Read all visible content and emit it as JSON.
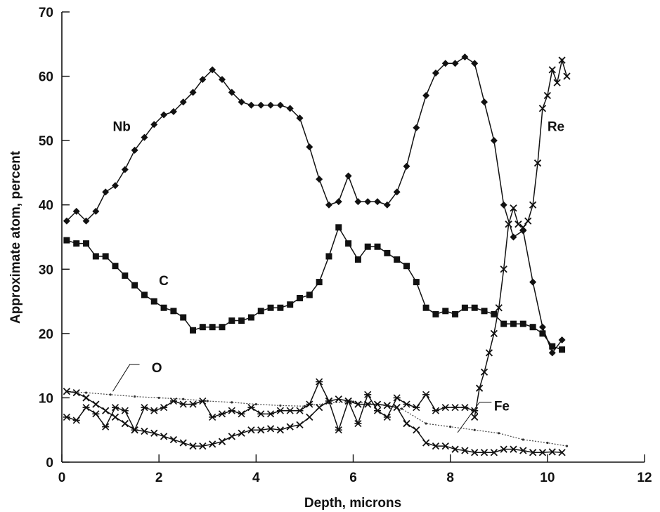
{
  "chart_data": {
    "type": "line",
    "title": "",
    "xlabel": "Depth, microns",
    "ylabel": "Approximate atom, percent",
    "xlim": [
      0,
      12
    ],
    "ylim": [
      0,
      70
    ],
    "xticks": [
      "0",
      "2",
      "4",
      "6",
      "8",
      "10",
      "12"
    ],
    "yticks": [
      "0",
      "10",
      "20",
      "30",
      "40",
      "50",
      "60",
      "70"
    ],
    "grid": false,
    "legend": "inline labels",
    "series": [
      {
        "name": "Nb",
        "marker": "diamond",
        "x": [
          0.1,
          0.3,
          0.5,
          0.7,
          0.9,
          1.1,
          1.3,
          1.5,
          1.7,
          1.9,
          2.1,
          2.3,
          2.5,
          2.7,
          2.9,
          3.1,
          3.3,
          3.5,
          3.7,
          3.9,
          4.1,
          4.3,
          4.5,
          4.7,
          4.9,
          5.1,
          5.3,
          5.5,
          5.7,
          5.9,
          6.1,
          6.3,
          6.5,
          6.7,
          6.9,
          7.1,
          7.3,
          7.5,
          7.7,
          7.9,
          8.1,
          8.3,
          8.5,
          8.7,
          8.9,
          9.1,
          9.3,
          9.5,
          9.7,
          9.9,
          10.1,
          10.3
        ],
        "values": [
          37.5,
          39.0,
          37.5,
          39.0,
          42.0,
          43.0,
          45.5,
          48.5,
          50.5,
          52.5,
          54.0,
          54.5,
          56.0,
          57.5,
          59.5,
          61.0,
          59.5,
          57.5,
          56.0,
          55.5,
          55.5,
          55.5,
          55.5,
          55.0,
          53.5,
          49.0,
          44.0,
          40.0,
          40.5,
          44.5,
          40.5,
          40.5,
          40.5,
          40.0,
          42.0,
          46.0,
          52.0,
          57.0,
          60.5,
          62.0,
          62.0,
          63.0,
          62.0,
          56.0,
          50.0,
          40.0,
          35.0,
          36.0,
          28.0,
          21.0,
          17.0,
          19.0
        ]
      },
      {
        "name": "C",
        "marker": "square",
        "x": [
          0.1,
          0.3,
          0.5,
          0.7,
          0.9,
          1.1,
          1.3,
          1.5,
          1.7,
          1.9,
          2.1,
          2.3,
          2.5,
          2.7,
          2.9,
          3.1,
          3.3,
          3.5,
          3.7,
          3.9,
          4.1,
          4.3,
          4.5,
          4.7,
          4.9,
          5.1,
          5.3,
          5.5,
          5.7,
          5.9,
          6.1,
          6.3,
          6.5,
          6.7,
          6.9,
          7.1,
          7.3,
          7.5,
          7.7,
          7.9,
          8.1,
          8.3,
          8.5,
          8.7,
          8.9,
          9.1,
          9.3,
          9.5,
          9.7,
          9.9,
          10.1,
          10.3
        ],
        "values": [
          34.5,
          34.0,
          34.0,
          32.0,
          32.0,
          30.5,
          29.0,
          27.5,
          26.0,
          25.0,
          24.0,
          23.5,
          22.5,
          20.5,
          21.0,
          21.0,
          21.0,
          22.0,
          22.0,
          22.5,
          23.5,
          24.0,
          24.0,
          24.5,
          25.5,
          26.0,
          28.0,
          32.0,
          36.5,
          34.0,
          31.5,
          33.5,
          33.5,
          32.5,
          31.5,
          30.5,
          28.0,
          24.0,
          23.0,
          23.5,
          23.0,
          24.0,
          24.0,
          23.5,
          23.0,
          21.5,
          21.5,
          21.5,
          21.0,
          20.0,
          18.0,
          17.5
        ]
      },
      {
        "name": "Re",
        "marker": "x",
        "x": [
          8.5,
          8.6,
          8.7,
          8.8,
          8.9,
          9.0,
          9.1,
          9.2,
          9.3,
          9.4,
          9.5,
          9.6,
          9.7,
          9.8,
          9.9,
          10.0,
          10.1,
          10.2,
          10.3,
          10.4
        ],
        "values": [
          7.0,
          11.5,
          14.0,
          17.0,
          20.0,
          24.0,
          30.0,
          37.0,
          39.5,
          37.0,
          36.5,
          37.5,
          40.0,
          46.5,
          55.0,
          57.0,
          61.0,
          59.0,
          62.5,
          60.0
        ]
      },
      {
        "name": "O",
        "marker": "dot",
        "x": [
          0.1,
          0.5,
          1.0,
          1.5,
          2.0,
          2.5,
          3.0,
          3.5,
          4.0,
          4.5,
          5.0,
          5.5,
          6.0,
          6.5,
          7.0,
          7.5,
          8.0,
          8.5,
          9.0,
          9.5,
          10.0,
          10.4
        ],
        "values": [
          11.0,
          10.8,
          10.5,
          10.2,
          10.0,
          9.8,
          9.5,
          9.3,
          9.0,
          8.8,
          8.7,
          9.2,
          9.4,
          9.0,
          8.3,
          6.0,
          5.5,
          5.0,
          4.5,
          3.5,
          3.0,
          2.5
        ]
      },
      {
        "name": "Fe",
        "marker": "x",
        "x": [
          0.1,
          0.3,
          0.5,
          0.7,
          0.9,
          1.1,
          1.3,
          1.5,
          1.7,
          1.9,
          2.1,
          2.3,
          2.5,
          2.7,
          2.9,
          3.1,
          3.3,
          3.5,
          3.7,
          3.9,
          4.1,
          4.3,
          4.5,
          4.7,
          4.9,
          5.1,
          5.3,
          5.5,
          5.7,
          5.9,
          6.1,
          6.3,
          6.5,
          6.7,
          6.9,
          7.1,
          7.3,
          7.5,
          7.7,
          7.9,
          8.1,
          8.3,
          8.5,
          8.7,
          8.9,
          9.1,
          9.3,
          9.5,
          9.7,
          9.9,
          10.1,
          10.3
        ],
        "values": [
          11.0,
          10.8,
          10.0,
          9.0,
          8.0,
          7.0,
          6.0,
          5.0,
          4.8,
          4.5,
          4.0,
          3.5,
          3.0,
          2.5,
          2.5,
          2.8,
          3.2,
          4.0,
          4.5,
          5.0,
          5.0,
          5.2,
          5.0,
          5.5,
          5.8,
          7.0,
          8.5,
          9.5,
          9.8,
          9.5,
          9.0,
          9.0,
          9.0,
          8.8,
          8.5,
          6.0,
          5.0,
          3.0,
          2.5,
          2.5,
          2.0,
          1.8,
          1.5,
          1.5,
          1.5,
          2.0,
          2.0,
          1.8,
          1.5,
          1.5,
          1.6,
          1.5
        ]
      },
      {
        "name": "",
        "marker": "asterisk",
        "x": [
          0.1,
          0.3,
          0.5,
          0.7,
          0.9,
          1.1,
          1.3,
          1.5,
          1.7,
          1.9,
          2.1,
          2.3,
          2.5,
          2.7,
          2.9,
          3.1,
          3.3,
          3.5,
          3.7,
          3.9,
          4.1,
          4.3,
          4.5,
          4.7,
          4.9,
          5.1,
          5.3,
          5.5,
          5.7,
          5.9,
          6.1,
          6.3,
          6.5,
          6.7,
          6.9,
          7.1,
          7.3,
          7.5,
          7.7,
          7.9,
          8.1,
          8.3,
          8.5
        ],
        "values": [
          7.0,
          6.5,
          8.5,
          7.5,
          5.5,
          8.5,
          8.0,
          5.0,
          8.5,
          8.0,
          8.5,
          9.5,
          9.0,
          9.0,
          9.5,
          7.0,
          7.5,
          8.0,
          7.5,
          8.5,
          7.5,
          7.5,
          8.0,
          8.0,
          8.0,
          9.0,
          12.5,
          9.5,
          5.0,
          9.5,
          6.0,
          10.5,
          8.0,
          7.0,
          10.0,
          9.0,
          8.5,
          10.5,
          8.0,
          8.5,
          8.5,
          8.5,
          8.0
        ]
      }
    ],
    "annotations": [
      {
        "text": "Nb",
        "series": "Nb"
      },
      {
        "text": "C",
        "series": "C"
      },
      {
        "text": "Re",
        "series": "Re"
      },
      {
        "text": "O",
        "series": "O"
      },
      {
        "text": "Fe",
        "series": "Fe"
      }
    ]
  }
}
